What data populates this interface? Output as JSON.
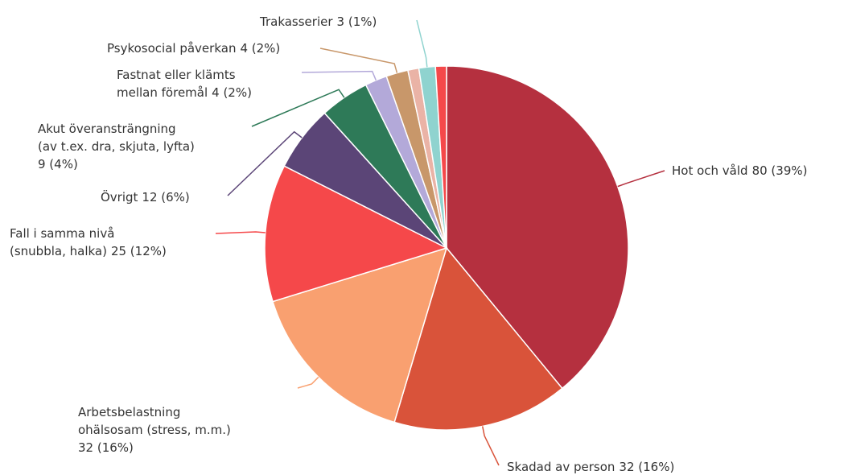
{
  "chart_data": {
    "type": "pie",
    "categories": [
      [
        "Hot och våld"
      ],
      [
        "Skadad av person"
      ],
      [
        "Arbetsbelastning",
        "ohälsosam (stress, m.m.)"
      ],
      [
        "Fall i samma nivå",
        "(snubbla, halka)"
      ],
      [
        "Övrigt"
      ],
      [
        "Akut överansträngning",
        "(av t.ex. dra, skjuta, lyfta)"
      ],
      [
        "Fastnat eller klämts",
        "mellan föremål"
      ],
      [
        "Psykosocial påverkan"
      ],
      null,
      [
        "Trakasserier"
      ],
      null
    ],
    "values": [
      80,
      32,
      32,
      25,
      12,
      9,
      4,
      4,
      2,
      3,
      2
    ],
    "value_labels": [
      "80 (39%)",
      "32 (16%)",
      "32 (16%)",
      "25 (12%)",
      "12 (6%)",
      "9 (4%)",
      "4 (2%)",
      "4 (2%)",
      null,
      "3 (1%)",
      null
    ],
    "colors": [
      "#b5303f",
      "#d9533a",
      "#f9a070",
      "#f5484a",
      "#5b4577",
      "#2e7a58",
      "#b3a9d9",
      "#c8976a",
      "#eab3a6",
      "#8fd3cf",
      "#f5484a"
    ]
  }
}
